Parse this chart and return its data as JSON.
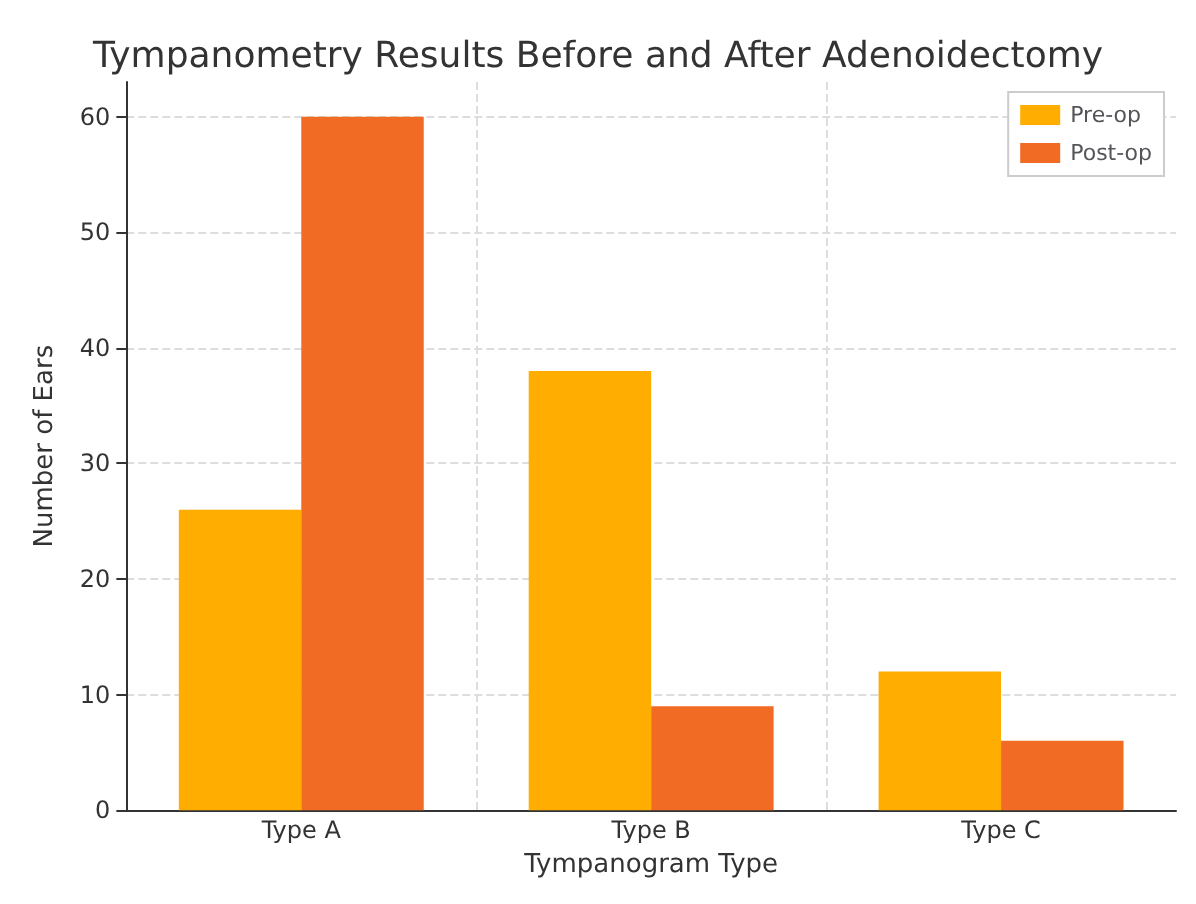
{
  "chart_data": {
    "type": "bar",
    "title": "Tympanometry Results Before and After Adenoidectomy",
    "xlabel": "Tympanogram Type",
    "ylabel": "Number of Ears",
    "categories": [
      "Type A",
      "Type B",
      "Type C"
    ],
    "series": [
      {
        "name": "Pre-op",
        "color": "#ffad00",
        "values": [
          26,
          38,
          12
        ]
      },
      {
        "name": "Post-op",
        "color": "#f26b24",
        "values": [
          60,
          9,
          6
        ]
      }
    ],
    "ylim": [
      0,
      63
    ],
    "yticks": [
      0,
      10,
      20,
      30,
      40,
      50,
      60
    ],
    "grid": true,
    "legend": "top right"
  }
}
